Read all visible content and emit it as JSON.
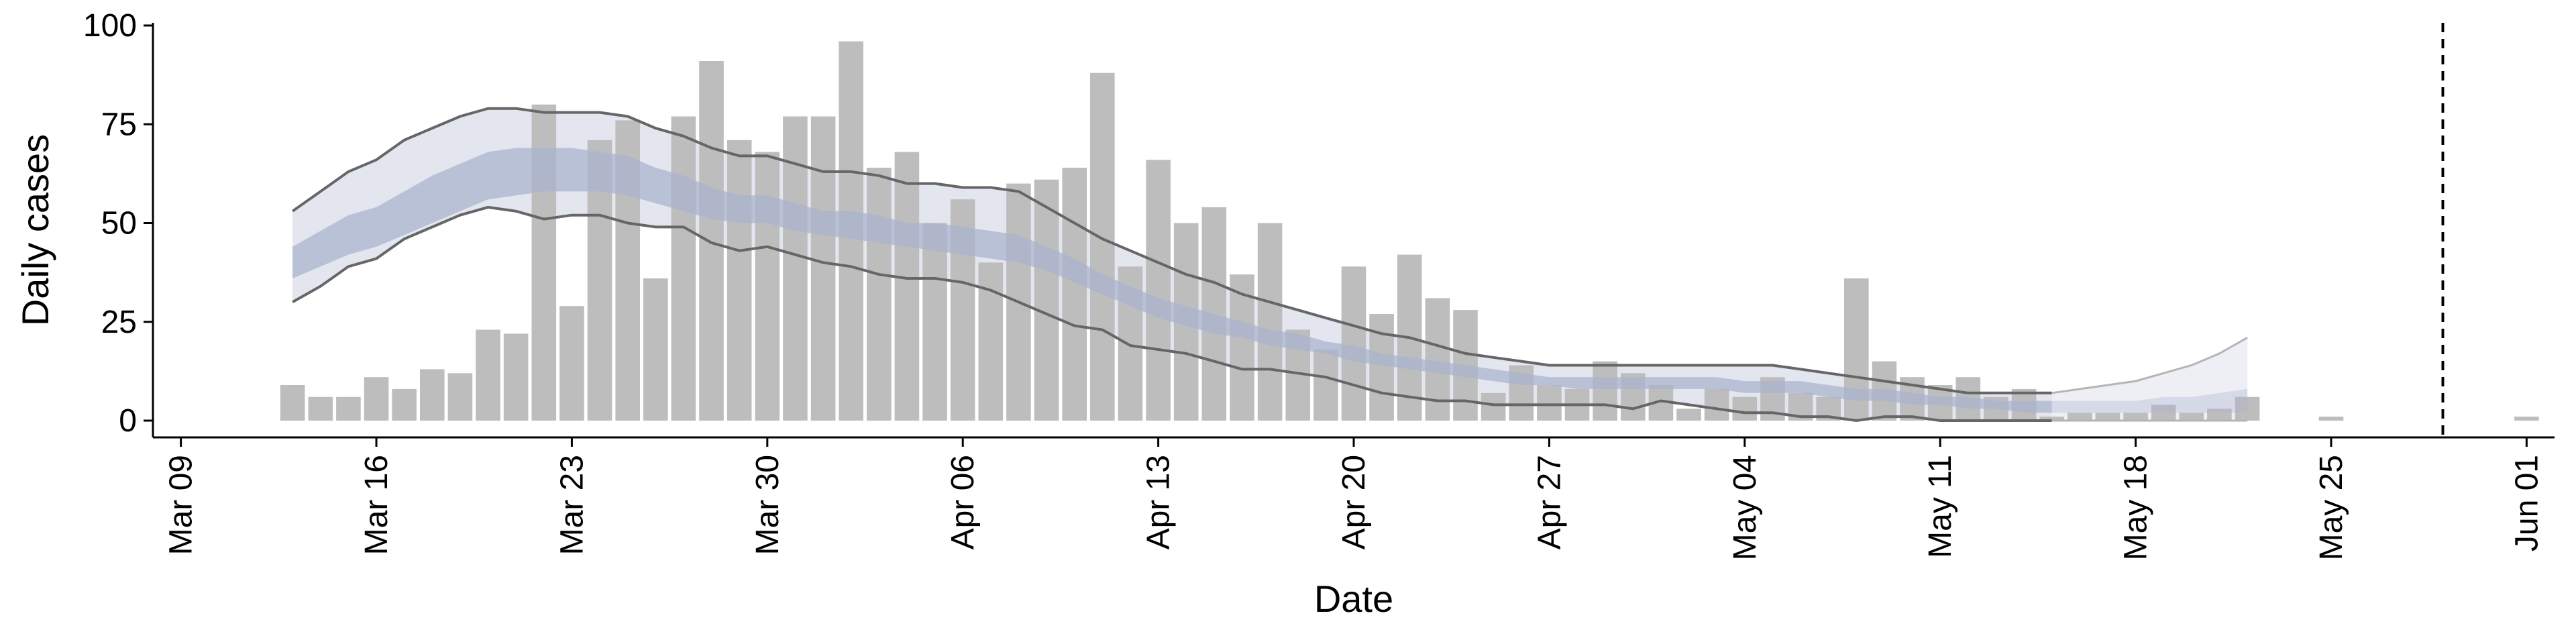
{
  "chart_data": {
    "type": "bar",
    "xlabel": "Date",
    "ylabel": "Daily cases",
    "ylim": [
      0,
      100
    ],
    "yticks": [
      0,
      25,
      50,
      75,
      100
    ],
    "xlim": [
      "2020-03-08",
      "2020-06-02"
    ],
    "xticks": [
      {
        "date": "2020-03-09",
        "label": "Mar 09"
      },
      {
        "date": "2020-03-16",
        "label": "Mar 16"
      },
      {
        "date": "2020-03-23",
        "label": "Mar 23"
      },
      {
        "date": "2020-03-30",
        "label": "Mar 30"
      },
      {
        "date": "2020-04-06",
        "label": "Apr 06"
      },
      {
        "date": "2020-04-13",
        "label": "Apr 13"
      },
      {
        "date": "2020-04-20",
        "label": "Apr 20"
      },
      {
        "date": "2020-04-27",
        "label": "Apr 27"
      },
      {
        "date": "2020-05-04",
        "label": "May 04"
      },
      {
        "date": "2020-05-11",
        "label": "May 11"
      },
      {
        "date": "2020-05-18",
        "label": "May 18"
      },
      {
        "date": "2020-05-25",
        "label": "May 25"
      },
      {
        "date": "2020-06-01",
        "label": "Jun 01"
      }
    ],
    "grid": false,
    "bars": {
      "start_date": "2020-03-13",
      "values": [
        9,
        6,
        6,
        11,
        8,
        13,
        12,
        23,
        22,
        80,
        29,
        71,
        76,
        36,
        77,
        91,
        71,
        68,
        77,
        77,
        96,
        64,
        68,
        50,
        56,
        40,
        60,
        61,
        64,
        88,
        39,
        66,
        50,
        54,
        37,
        50,
        23,
        18,
        39,
        27,
        42,
        31,
        28,
        7,
        14,
        9,
        8,
        15,
        12,
        9,
        3,
        8,
        6,
        11,
        7,
        6,
        36,
        15,
        11,
        9,
        11,
        6,
        8,
        1,
        2,
        2,
        2,
        4,
        2,
        3,
        6,
        0,
        0,
        1,
        0,
        0,
        0,
        0,
        0,
        0,
        1
      ],
      "color": "#bdbdbd"
    },
    "estimate": {
      "start_date": "2020-03-13",
      "outer_upper": [
        53,
        58,
        63,
        66,
        71,
        74,
        77,
        79,
        79,
        78,
        78,
        78,
        77,
        74,
        72,
        69,
        67,
        67,
        65,
        63,
        63,
        62,
        60,
        60,
        59,
        59,
        58,
        54,
        50,
        46,
        43,
        40,
        37,
        35,
        32,
        30,
        28,
        26,
        24,
        22,
        21,
        19,
        17,
        16,
        15,
        14,
        14,
        14,
        14,
        14,
        14,
        14,
        14,
        14,
        13,
        12,
        11,
        10,
        9,
        8,
        7,
        7,
        7,
        7,
        8,
        9,
        10,
        12,
        14,
        17,
        21
      ],
      "inner_upper": [
        44,
        48,
        52,
        54,
        58,
        62,
        65,
        68,
        69,
        69,
        69,
        68,
        67,
        64,
        62,
        59,
        57,
        57,
        55,
        53,
        53,
        52,
        50,
        50,
        49,
        48,
        47,
        44,
        41,
        37,
        34,
        31,
        29,
        27,
        25,
        23,
        22,
        20,
        19,
        17,
        16,
        15,
        14,
        13,
        12,
        11,
        11,
        11,
        11,
        11,
        11,
        11,
        10,
        10,
        10,
        9,
        8,
        8,
        7,
        6,
        6,
        5,
        5,
        5,
        5,
        5,
        5,
        6,
        6,
        7,
        8
      ],
      "inner_lower": [
        36,
        39,
        42,
        44,
        47,
        50,
        53,
        56,
        57,
        58,
        58,
        58,
        57,
        55,
        53,
        51,
        50,
        50,
        48,
        47,
        46,
        45,
        44,
        43,
        42,
        41,
        40,
        38,
        35,
        32,
        29,
        26,
        24,
        22,
        21,
        19,
        18,
        17,
        15,
        14,
        13,
        12,
        11,
        10,
        9,
        9,
        8,
        8,
        8,
        8,
        8,
        8,
        7,
        7,
        7,
        6,
        5,
        5,
        4,
        4,
        3,
        3,
        2,
        2,
        2,
        2,
        2,
        2,
        2,
        2,
        2
      ],
      "outer_lower": [
        30,
        34,
        39,
        41,
        46,
        49,
        52,
        54,
        53,
        51,
        52,
        52,
        50,
        49,
        49,
        45,
        43,
        44,
        42,
        40,
        39,
        37,
        36,
        36,
        35,
        33,
        30,
        27,
        24,
        23,
        19,
        18,
        17,
        15,
        13,
        13,
        12,
        11,
        9,
        7,
        6,
        5,
        5,
        4,
        4,
        4,
        4,
        4,
        3,
        5,
        4,
        3,
        2,
        2,
        1,
        1,
        0,
        1,
        1,
        0,
        0,
        0,
        0,
        0,
        0,
        0,
        0,
        0,
        0,
        0,
        0
      ],
      "solid_until_date": "2020-05-15",
      "outer_color": "#e3e5ef",
      "inner_color": "#a9b3cd",
      "line_color": "#666666"
    },
    "vline": {
      "date": "2020-05-29",
      "style": "dashed"
    }
  }
}
